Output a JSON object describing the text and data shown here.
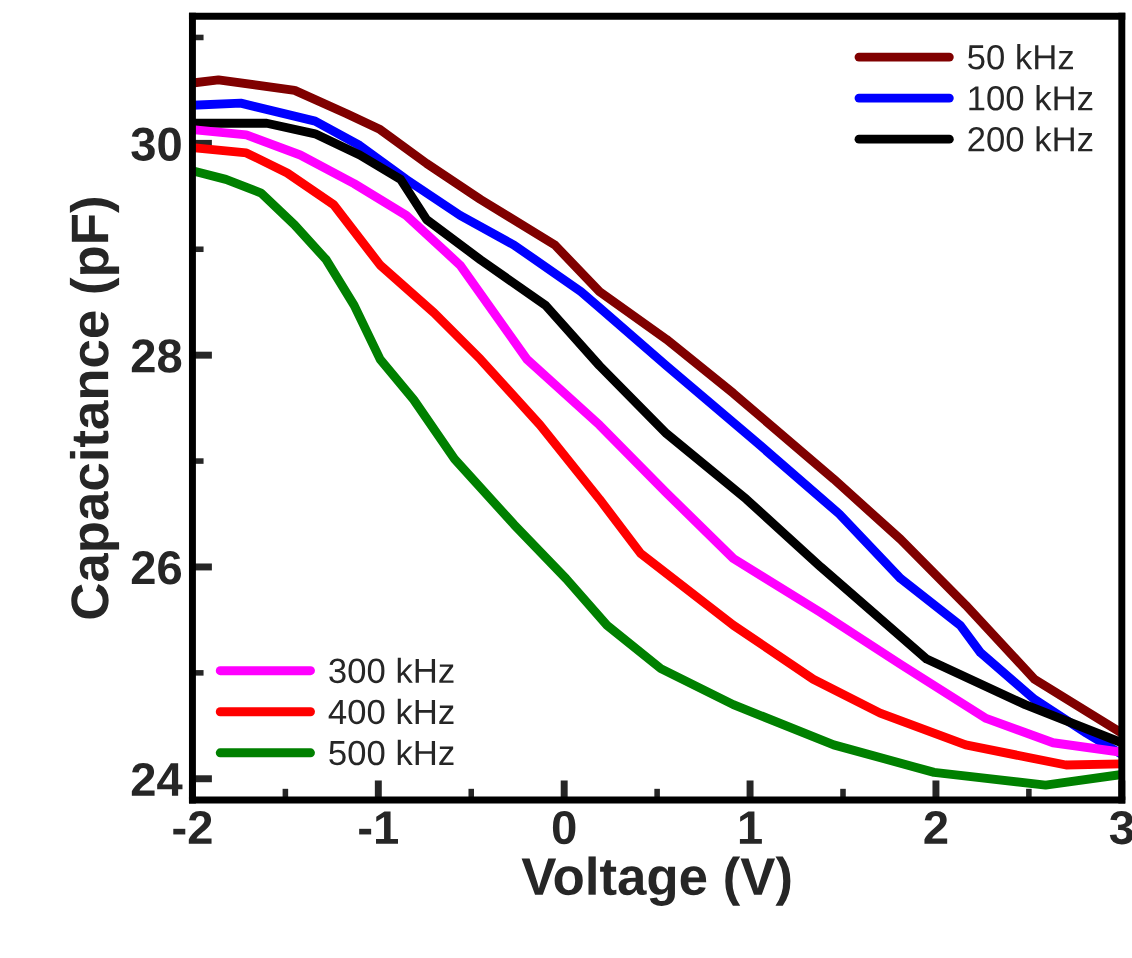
{
  "chart_data": {
    "type": "line",
    "xlabel": "Voltage (V)",
    "ylabel": "Capacitance (pF)",
    "xlim": [
      -2,
      3
    ],
    "ylim": [
      23.8,
      31.2
    ],
    "xticks": [
      -2,
      -1,
      0,
      1,
      2,
      3
    ],
    "yticks": [
      24,
      26,
      28,
      30
    ],
    "grid": false,
    "legend": "top right",
    "marker": "none",
    "line_style": "solid",
    "series": [
      {
        "name": "50 kHz",
        "color": "#800000",
        "x": [
          -2.0,
          -1.86,
          -1.45,
          -1.17,
          -0.99,
          -0.74,
          -0.45,
          -0.05,
          0.19,
          0.55,
          0.91,
          1.45,
          1.81,
          2.16,
          2.53,
          3.0
        ],
        "values": [
          30.57,
          30.6,
          30.5,
          30.28,
          30.13,
          29.81,
          29.47,
          29.04,
          28.6,
          28.15,
          27.64,
          26.83,
          26.26,
          25.64,
          24.94,
          24.43
        ]
      },
      {
        "name": "100 kHz",
        "color": "#0000ff",
        "x": [
          -2.0,
          -1.74,
          -1.34,
          -1.1,
          -0.85,
          -0.56,
          -0.27,
          0.09,
          0.19,
          0.55,
          1.02,
          1.48,
          1.81,
          2.13,
          2.24,
          2.53,
          2.81,
          3.0
        ],
        "values": [
          30.36,
          30.38,
          30.21,
          29.98,
          29.66,
          29.32,
          29.04,
          28.6,
          28.45,
          27.9,
          27.2,
          26.5,
          25.89,
          25.45,
          25.19,
          24.75,
          24.43,
          24.23
        ]
      },
      {
        "name": "200 kHz",
        "color": "#000000",
        "x": [
          -2.0,
          -1.6,
          -1.34,
          -1.1,
          -0.88,
          -0.74,
          -0.45,
          -0.1,
          0.19,
          0.55,
          0.98,
          1.38,
          1.95,
          2.48,
          3.0
        ],
        "values": [
          30.19,
          30.19,
          30.09,
          29.89,
          29.66,
          29.28,
          28.9,
          28.47,
          27.9,
          27.26,
          26.64,
          26.0,
          25.13,
          24.7,
          24.34
        ]
      },
      {
        "name": "300 kHz",
        "color": "#ff00ff",
        "x": [
          -2.0,
          -1.71,
          -1.42,
          -1.13,
          -0.85,
          -0.56,
          -0.2,
          0.19,
          0.55,
          0.91,
          1.38,
          1.81,
          2.27,
          2.63,
          3.0
        ],
        "values": [
          30.13,
          30.08,
          29.89,
          29.62,
          29.32,
          28.85,
          27.96,
          27.34,
          26.7,
          26.08,
          25.57,
          25.08,
          24.57,
          24.34,
          24.25
        ]
      },
      {
        "name": "400 kHz",
        "color": "#ff0000",
        "x": [
          -2.0,
          -1.71,
          -1.49,
          -1.24,
          -0.99,
          -0.7,
          -0.45,
          -0.13,
          0.19,
          0.41,
          0.91,
          1.34,
          1.7,
          2.16,
          2.7,
          3.0
        ],
        "values": [
          29.96,
          29.91,
          29.72,
          29.42,
          28.85,
          28.4,
          27.96,
          27.34,
          26.64,
          26.13,
          25.45,
          24.94,
          24.62,
          24.32,
          24.13,
          24.14
        ]
      },
      {
        "name": "500 kHz",
        "color": "#008000",
        "x": [
          -2.0,
          -1.82,
          -1.63,
          -1.45,
          -1.28,
          -1.13,
          -0.99,
          -0.81,
          -0.59,
          -0.27,
          0.01,
          0.23,
          0.52,
          0.91,
          1.45,
          1.99,
          2.59,
          3.0
        ],
        "values": [
          29.74,
          29.66,
          29.53,
          29.23,
          28.9,
          28.47,
          27.96,
          27.58,
          27.02,
          26.4,
          25.89,
          25.45,
          25.04,
          24.7,
          24.32,
          24.06,
          23.94,
          24.04
        ]
      }
    ]
  }
}
